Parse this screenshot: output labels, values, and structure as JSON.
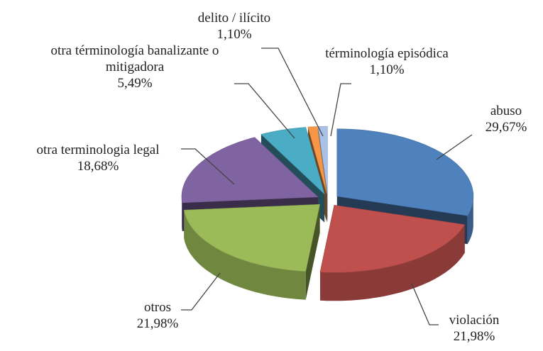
{
  "chart_data": {
    "type": "pie3d",
    "categories": [
      "abuso",
      "violación",
      "otros",
      "otra terminologia legal",
      "otra términología banalizante o mitigadora",
      "delito / ilícito",
      "términología episódica"
    ],
    "values": [
      29.67,
      21.98,
      21.98,
      18.68,
      5.49,
      1.1,
      1.1
    ],
    "value_labels": [
      "29,67%",
      "21,98%",
      "21,98%",
      "18,68%",
      "5,49%",
      "1,10%",
      "1,10%"
    ],
    "colors": [
      "#4f81bd",
      "#c0504d",
      "#9bbb59",
      "#8064a2",
      "#4bacc6",
      "#f79646",
      "#a9c1e6"
    ]
  }
}
